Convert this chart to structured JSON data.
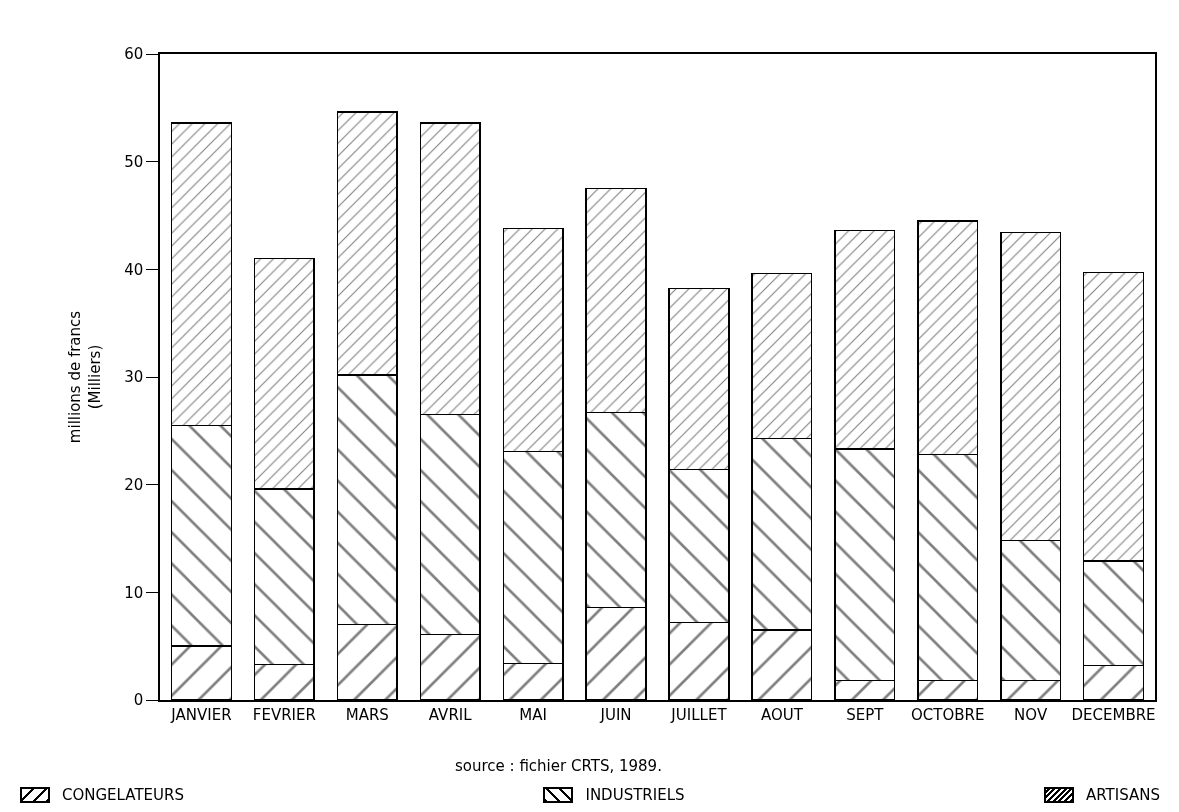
{
  "chart_data": {
    "type": "bar",
    "stacked": true,
    "categories": [
      "JANVIER",
      "FEVRIER",
      "MARS",
      "AVRIL",
      "MAI",
      "JUIN",
      "JUILLET",
      "AOUT",
      "SEPT",
      "OCTOBRE",
      "NOV",
      "DECEMBRE"
    ],
    "series": [
      {
        "name": "CONGELATEURS",
        "color": "#000000",
        "values": [
          5.0,
          3.3,
          7.0,
          6.1,
          3.4,
          8.6,
          7.2,
          6.5,
          1.8,
          1.8,
          1.8,
          3.2
        ]
      },
      {
        "name": "INDUSTRIELS",
        "color": "#000000",
        "values": [
          20.5,
          16.3,
          23.2,
          20.4,
          19.7,
          18.1,
          14.2,
          17.8,
          21.5,
          21.0,
          13.0,
          9.7
        ]
      },
      {
        "name": "ARTISANS",
        "color": "#000000",
        "values": [
          28.1,
          21.4,
          24.4,
          27.1,
          20.7,
          20.8,
          16.8,
          15.3,
          20.3,
          21.7,
          28.6,
          26.8
        ]
      }
    ],
    "ylabel": "millions de francs\n(Milliers)",
    "ylim": [
      0,
      60
    ],
    "yticks": [
      0,
      10,
      20,
      30,
      40,
      50,
      60
    ],
    "annotations": [
      "source : fichier CRTS, 1989."
    ],
    "grid": false,
    "legend": "bottom"
  }
}
